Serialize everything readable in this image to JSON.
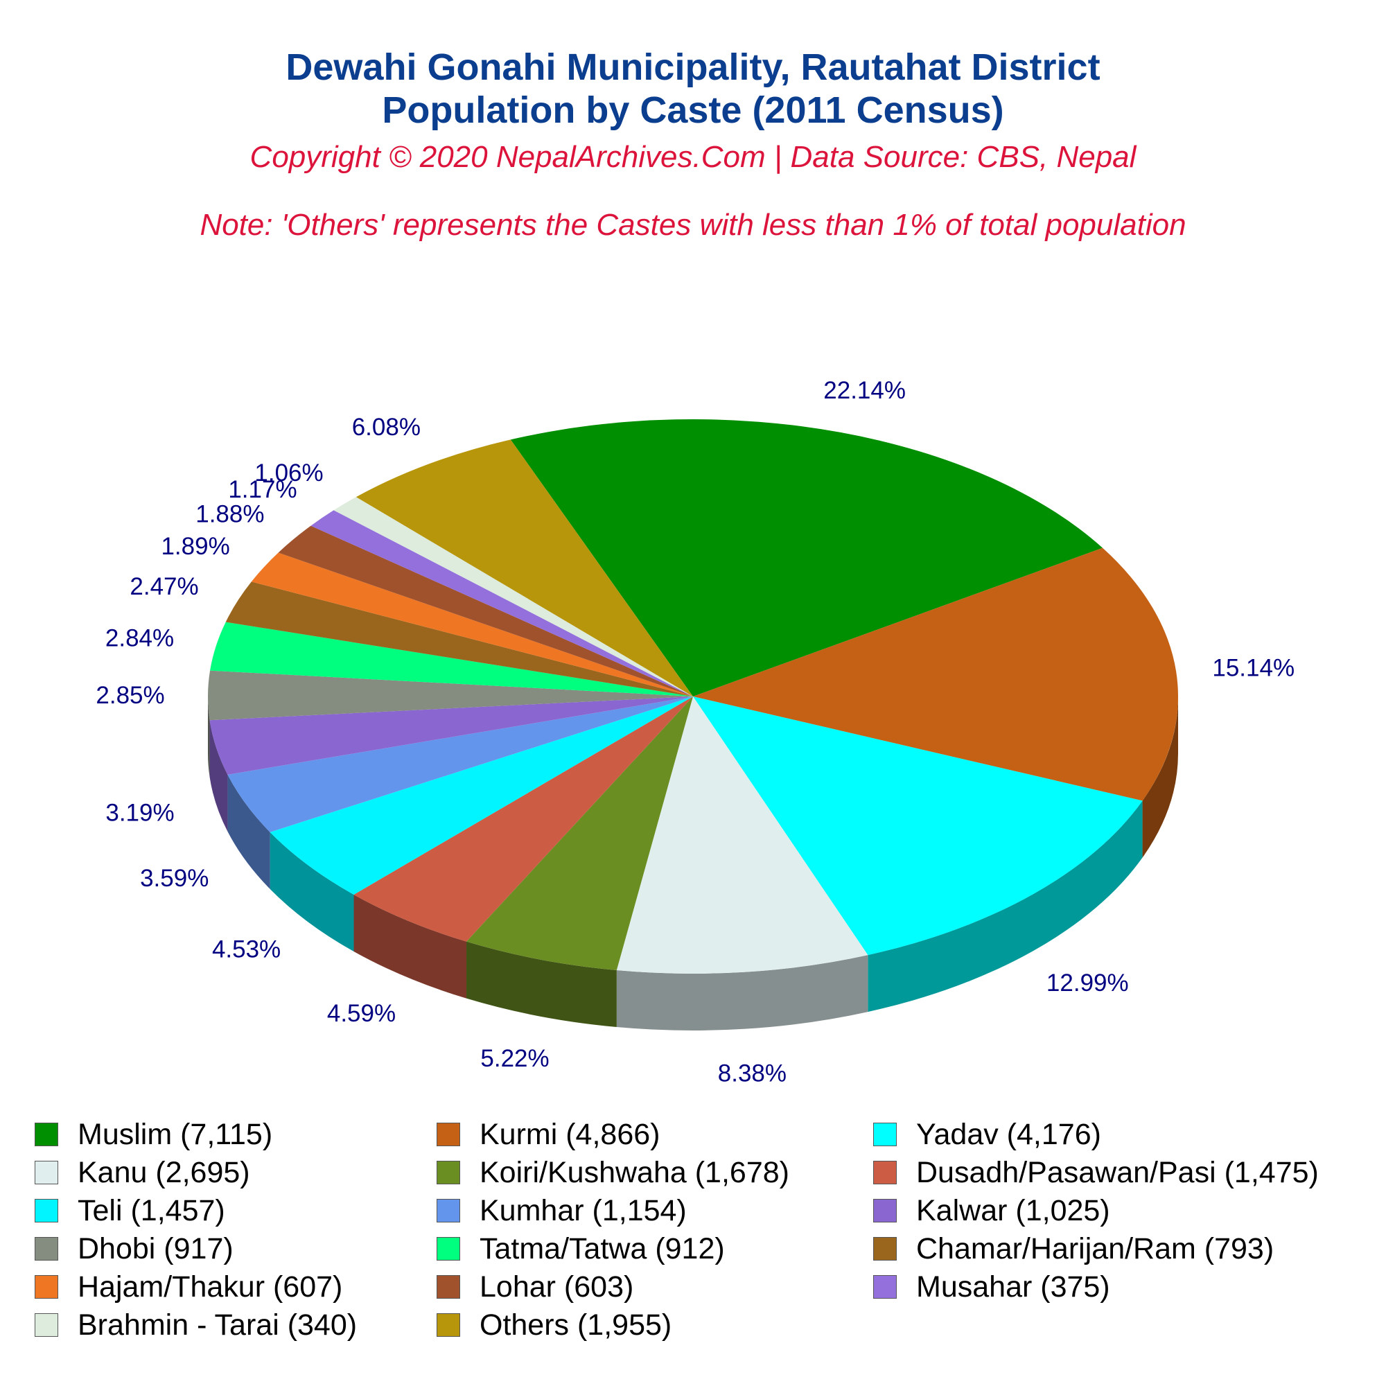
{
  "header": {
    "title_line1": "Dewahi Gonahi Municipality, Rautahat District",
    "title_line2": "Population by Caste (2011 Census)",
    "copyright": "Copyright © 2020 NepalArchives.Com | Data Source: CBS, Nepal",
    "note": "Note: 'Others' represents the Castes with less than 1% of total population"
  },
  "chart_data": {
    "type": "pie",
    "title": "Dewahi Gonahi Municipality, Rautahat District Population by Caste (2011 Census)",
    "legend_position": "bottom",
    "slices": [
      {
        "name": "Muslim",
        "value": 7115,
        "percent_label": "22.14%",
        "legend_label": "Muslim (7,115)",
        "color": "#008f00"
      },
      {
        "name": "Kurmi",
        "value": 4866,
        "percent_label": "15.14%",
        "legend_label": "Kurmi (4,866)",
        "color": "#c56115"
      },
      {
        "name": "Yadav",
        "value": 4176,
        "percent_label": "12.99%",
        "legend_label": "Yadav (4,176)",
        "color": "#00ffff"
      },
      {
        "name": "Kanu",
        "value": 2695,
        "percent_label": "8.38%",
        "legend_label": "Kanu (2,695)",
        "color": "#e0efee"
      },
      {
        "name": "Koiri/Kushwaha",
        "value": 1678,
        "percent_label": "5.22%",
        "legend_label": "Koiri/Kushwaha (1,678)",
        "color": "#6b8e23"
      },
      {
        "name": "Dusadh/Pasawan/Pasi",
        "value": 1475,
        "percent_label": "4.59%",
        "legend_label": "Dusadh/Pasawan/Pasi (1,475)",
        "color": "#cd5c45"
      },
      {
        "name": "Teli",
        "value": 1457,
        "percent_label": "4.53%",
        "legend_label": "Teli (1,457)",
        "color": "#00f5ff"
      },
      {
        "name": "Kumhar",
        "value": 1154,
        "percent_label": "3.59%",
        "legend_label": "Kumhar (1,154)",
        "color": "#6495ed"
      },
      {
        "name": "Kalwar",
        "value": 1025,
        "percent_label": "3.19%",
        "legend_label": "Kalwar (1,025)",
        "color": "#8a66d0"
      },
      {
        "name": "Dhobi",
        "value": 917,
        "percent_label": "2.85%",
        "legend_label": "Dhobi (917)",
        "color": "#858c80"
      },
      {
        "name": "Tatma/Tatwa",
        "value": 912,
        "percent_label": "2.84%",
        "legend_label": "Tatma/Tatwa (912)",
        "color": "#00ff7f"
      },
      {
        "name": "Chamar/Harijan/Ram",
        "value": 793,
        "percent_label": "2.47%",
        "legend_label": "Chamar/Harijan/Ram (793)",
        "color": "#9a661e"
      },
      {
        "name": "Hajam/Thakur",
        "value": 607,
        "percent_label": "1.89%",
        "legend_label": "Hajam/Thakur (607)",
        "color": "#ef7623"
      },
      {
        "name": "Lohar",
        "value": 603,
        "percent_label": "1.88%",
        "legend_label": "Lohar (603)",
        "color": "#a0522d"
      },
      {
        "name": "Musahar",
        "value": 375,
        "percent_label": "1.17%",
        "legend_label": "Musahar (375)",
        "color": "#9370db"
      },
      {
        "name": "Brahmin - Tarai",
        "value": 340,
        "percent_label": "1.06%",
        "legend_label": "Brahmin - Tarai (340)",
        "color": "#deecdd"
      },
      {
        "name": "Others",
        "value": 1955,
        "percent_label": "6.08%",
        "legend_label": "Others (1,955)",
        "color": "#b8960c"
      }
    ]
  }
}
